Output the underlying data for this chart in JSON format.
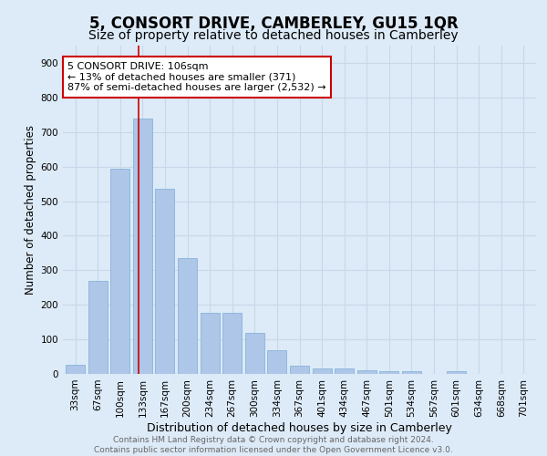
{
  "title": "5, CONSORT DRIVE, CAMBERLEY, GU15 1QR",
  "subtitle": "Size of property relative to detached houses in Camberley",
  "xlabel": "Distribution of detached houses by size in Camberley",
  "ylabel": "Number of detached properties",
  "categories": [
    "33sqm",
    "67sqm",
    "100sqm",
    "133sqm",
    "167sqm",
    "200sqm",
    "234sqm",
    "267sqm",
    "300sqm",
    "334sqm",
    "367sqm",
    "401sqm",
    "434sqm",
    "467sqm",
    "501sqm",
    "534sqm",
    "567sqm",
    "601sqm",
    "634sqm",
    "668sqm",
    "701sqm"
  ],
  "values": [
    27,
    270,
    595,
    740,
    537,
    335,
    178,
    178,
    120,
    68,
    25,
    15,
    15,
    10,
    9,
    9,
    0,
    9,
    0,
    0,
    0
  ],
  "bar_color": "#aec6e8",
  "bar_edge_color": "#7aaed4",
  "grid_color": "#c8d8ea",
  "background_color": "#ddeaf7",
  "vline_x_index": 2.83,
  "vline_color": "#cc0000",
  "annotation_text": "5 CONSORT DRIVE: 106sqm\n← 13% of detached houses are smaller (371)\n87% of semi-detached houses are larger (2,532) →",
  "annotation_box_color": "#ffffff",
  "annotation_box_edge": "#cc0000",
  "ylim": [
    0,
    950
  ],
  "yticks": [
    0,
    100,
    200,
    300,
    400,
    500,
    600,
    700,
    800,
    900
  ],
  "footer_text": "Contains HM Land Registry data © Crown copyright and database right 2024.\nContains public sector information licensed under the Open Government Licence v3.0.",
  "title_fontsize": 12,
  "subtitle_fontsize": 10,
  "xlabel_fontsize": 9,
  "ylabel_fontsize": 8.5,
  "tick_fontsize": 7.5,
  "annotation_fontsize": 8,
  "footer_fontsize": 6.5
}
